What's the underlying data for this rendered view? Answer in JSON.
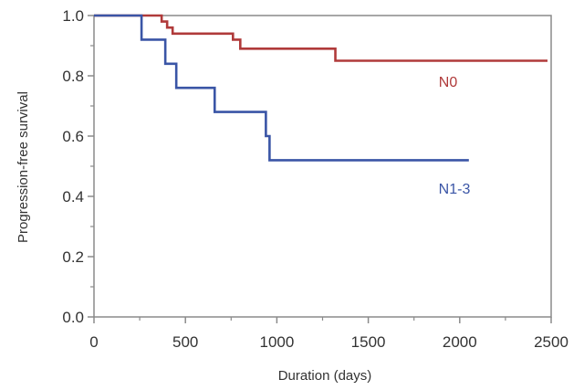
{
  "chart_data": {
    "type": "line",
    "title": "",
    "xlabel": "Duration (days)",
    "ylabel": "Progression-free survival",
    "xlim": [
      0,
      2500
    ],
    "ylim": [
      0.0,
      1.0
    ],
    "x_ticks": [
      0,
      500,
      1000,
      1500,
      2000,
      2500
    ],
    "x_tick_labels": [
      "0",
      "500",
      "1000",
      "1500",
      "2000",
      "2500"
    ],
    "y_ticks": [
      0.0,
      0.2,
      0.4,
      0.6,
      0.8,
      1.0
    ],
    "y_tick_labels": [
      "0.0",
      "0.2",
      "0.4",
      "0.6",
      "0.8",
      "1.0"
    ],
    "grid": false,
    "step": true,
    "series": [
      {
        "name": "N0",
        "color": "#b03a3a",
        "points": [
          [
            0,
            1.0
          ],
          [
            340,
            1.0
          ],
          [
            370,
            0.98
          ],
          [
            400,
            0.96
          ],
          [
            430,
            0.94
          ],
          [
            720,
            0.94
          ],
          [
            760,
            0.92
          ],
          [
            800,
            0.89
          ],
          [
            1300,
            0.89
          ],
          [
            1320,
            0.85
          ],
          [
            2480,
            0.85
          ]
        ]
      },
      {
        "name": "N1-3",
        "color": "#3a55a6",
        "points": [
          [
            0,
            1.0
          ],
          [
            250,
            1.0
          ],
          [
            260,
            0.92
          ],
          [
            370,
            0.92
          ],
          [
            390,
            0.84
          ],
          [
            430,
            0.84
          ],
          [
            450,
            0.76
          ],
          [
            640,
            0.76
          ],
          [
            660,
            0.68
          ],
          [
            920,
            0.68
          ],
          [
            940,
            0.6
          ],
          [
            960,
            0.52
          ],
          [
            2050,
            0.52
          ]
        ]
      }
    ]
  }
}
